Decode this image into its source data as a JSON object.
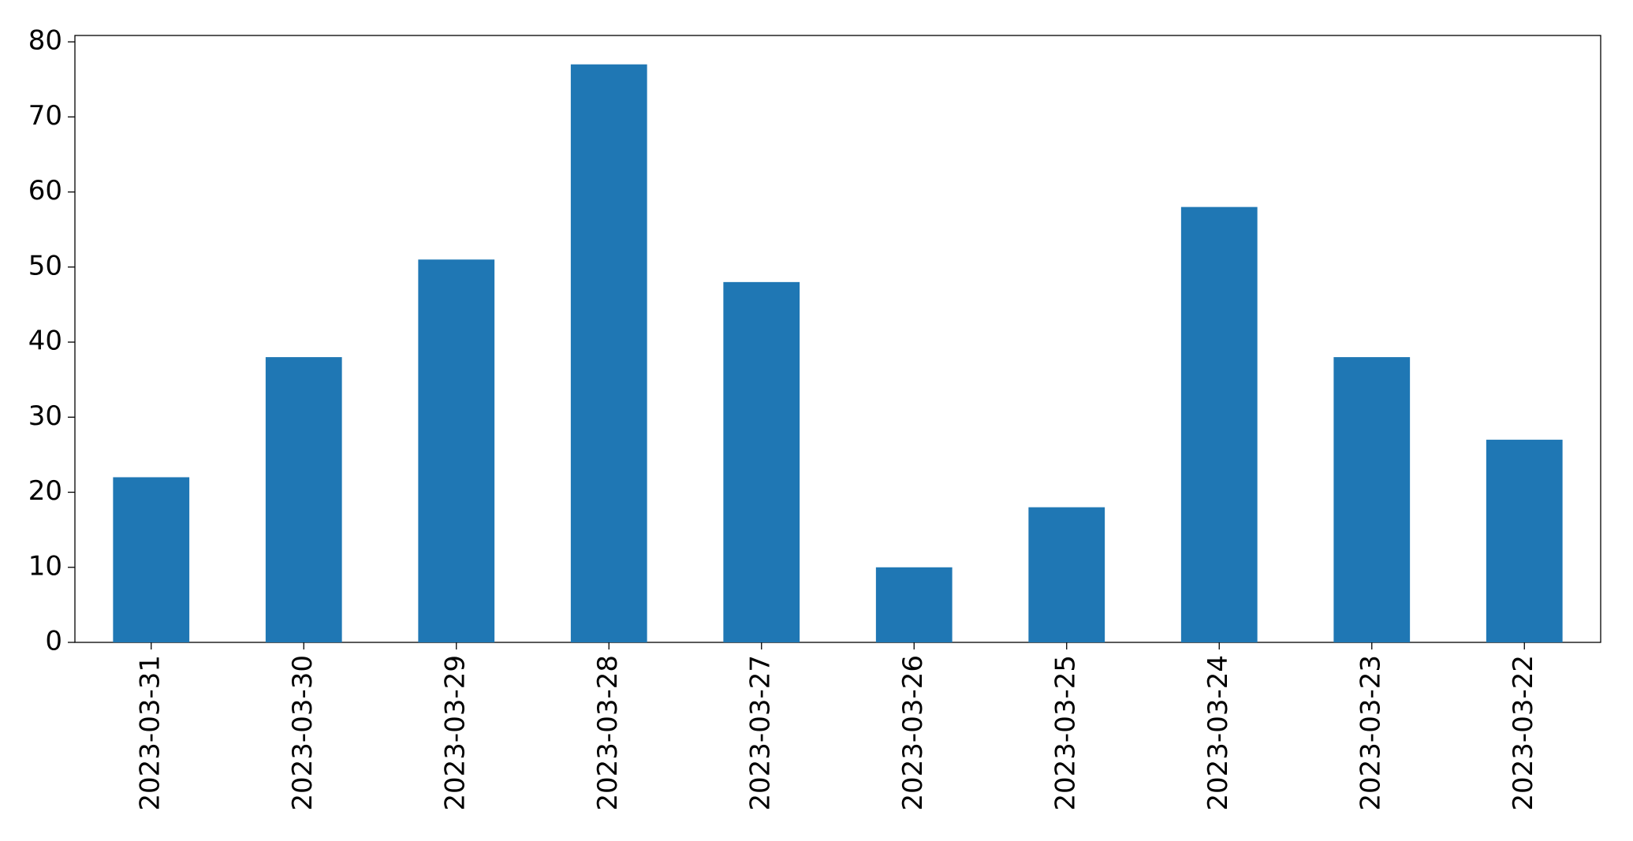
{
  "chart_data": {
    "type": "bar",
    "categories": [
      "2023-03-31",
      "2023-03-30",
      "2023-03-29",
      "2023-03-28",
      "2023-03-27",
      "2023-03-26",
      "2023-03-25",
      "2023-03-24",
      "2023-03-23",
      "2023-03-22"
    ],
    "values": [
      22,
      38,
      51,
      77,
      48,
      10,
      18,
      58,
      38,
      27
    ],
    "color": "#1f77b4",
    "ylim": [
      0,
      80.85
    ],
    "yticks": [
      0,
      10,
      20,
      30,
      40,
      50,
      60,
      70,
      80
    ],
    "grid": false
  }
}
